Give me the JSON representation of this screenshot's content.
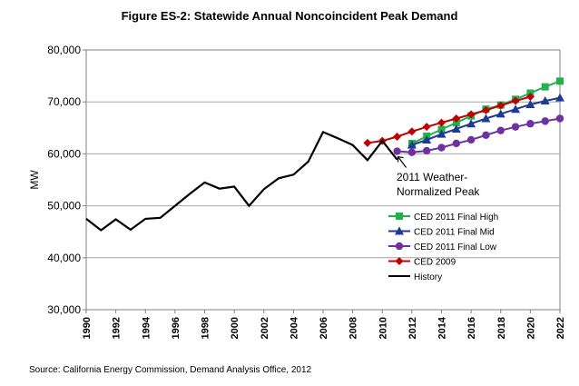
{
  "chart_data": {
    "type": "line",
    "title": "Figure ES-2: Statewide Annual Noncoincident Peak Demand",
    "source": "Source: California Energy Commission, Demand Analysis Office, 2012",
    "ylabel": "MW",
    "xlabel": "",
    "xlim": [
      1990,
      2022
    ],
    "ylim": [
      30000,
      80000
    ],
    "xticks": [
      "1990",
      "1992",
      "1994",
      "1996",
      "1998",
      "2000",
      "2002",
      "2004",
      "2006",
      "2008",
      "2010",
      "2012",
      "2014",
      "2016",
      "2018",
      "2020",
      "2022"
    ],
    "yticks": [
      "30,000",
      "40,000",
      "50,000",
      "60,000",
      "70,000",
      "80,000"
    ],
    "grid": "horizontal",
    "legend_position": "right",
    "annotation": {
      "text_line1": "2011 Weather-",
      "text_line2": "Normalized Peak",
      "x": 2011,
      "y": 60500
    },
    "series": [
      {
        "name": "CED 2011 Final High",
        "color": "#22b14c",
        "marker": "square",
        "x": [
          2012,
          2013,
          2014,
          2015,
          2016,
          2017,
          2018,
          2019,
          2020,
          2021,
          2022
        ],
        "y": [
          62000,
          63400,
          64700,
          66000,
          67300,
          68600,
          69400,
          70500,
          71700,
          72900,
          74000
        ]
      },
      {
        "name": "CED 2011 Final Mid",
        "color": "#1f3a93",
        "marker": "triangle",
        "x": [
          2012,
          2013,
          2014,
          2015,
          2016,
          2017,
          2018,
          2019,
          2020,
          2021,
          2022
        ],
        "y": [
          61700,
          62700,
          63800,
          64800,
          65800,
          66800,
          67700,
          68600,
          69500,
          70200,
          70800
        ]
      },
      {
        "name": "CED 2011 Final Low",
        "color": "#7030a0",
        "marker": "circle",
        "x": [
          2011,
          2012,
          2013,
          2014,
          2015,
          2016,
          2017,
          2018,
          2019,
          2020,
          2021,
          2022
        ],
        "y": [
          60500,
          60300,
          60600,
          61200,
          62000,
          62700,
          63600,
          64500,
          65200,
          65800,
          66300,
          66800
        ]
      },
      {
        "name": "CED 2009",
        "color": "#c00000",
        "marker": "diamond",
        "x": [
          2009,
          2010,
          2011,
          2012,
          2013,
          2014,
          2015,
          2016,
          2017,
          2018,
          2019,
          2020
        ],
        "y": [
          62100,
          62500,
          63300,
          64300,
          65200,
          66000,
          66800,
          67600,
          68400,
          69300,
          70200,
          71000
        ]
      },
      {
        "name": "History",
        "color": "#000000",
        "marker": "none",
        "x": [
          1990,
          1991,
          1992,
          1993,
          1994,
          1995,
          1996,
          1997,
          1998,
          1999,
          2000,
          2001,
          2002,
          2003,
          2004,
          2005,
          2006,
          2007,
          2008,
          2009,
          2010,
          2011
        ],
        "y": [
          47500,
          45300,
          47400,
          45400,
          47500,
          47700,
          50000,
          52300,
          54500,
          53300,
          53700,
          50000,
          53200,
          55300,
          56000,
          58500,
          64200,
          63000,
          61700,
          58800,
          62500,
          58900
        ]
      }
    ]
  }
}
